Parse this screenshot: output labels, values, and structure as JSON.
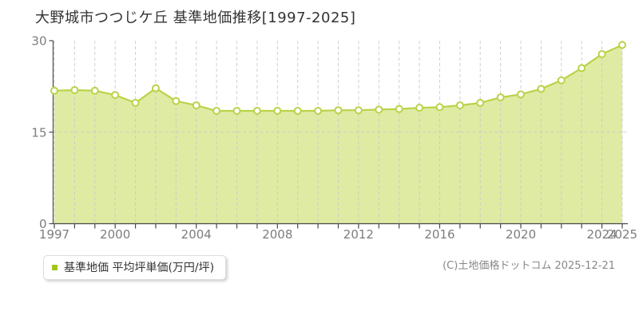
{
  "title": "大野城市つつじケ丘 基準地価推移[1997-2025]",
  "legend": {
    "marker": "square",
    "marker_color": "#a2c51d",
    "label": "基準地価 平均坪単価(万円/坪)"
  },
  "copyright": "(C)土地価格ドットコム 2025-12-21",
  "chart_data": {
    "type": "area",
    "title": "大野城市つつじケ丘 基準地価推移[1997-2025]",
    "xlabel": "",
    "ylabel": "平均坪単価(万円/坪)",
    "x": [
      1997,
      1998,
      1999,
      2000,
      2001,
      2002,
      2003,
      2004,
      2005,
      2006,
      2007,
      2008,
      2009,
      2010,
      2011,
      2012,
      2013,
      2014,
      2015,
      2016,
      2017,
      2018,
      2019,
      2020,
      2021,
      2022,
      2023,
      2024,
      2025
    ],
    "series": [
      {
        "name": "基準地価 平均坪単価(万円/坪)",
        "values": [
          21.8,
          21.9,
          21.8,
          21.1,
          19.8,
          22.2,
          20.1,
          19.4,
          18.5,
          18.5,
          18.5,
          18.5,
          18.5,
          18.5,
          18.6,
          18.6,
          18.7,
          18.8,
          19.0,
          19.1,
          19.4,
          19.8,
          20.7,
          21.2,
          22.1,
          23.5,
          25.5,
          27.8,
          29.3
        ]
      }
    ],
    "ylim": [
      0,
      30
    ],
    "yticks": [
      0,
      15,
      30
    ],
    "xticks": [
      1997,
      2000,
      2004,
      2008,
      2012,
      2016,
      2020,
      2024,
      2025
    ],
    "grid": "dashed vertical line per year, dashed horizontal line at 15",
    "legend_position": "bottom-left",
    "colors": {
      "line": "#b9d348",
      "fill": "#dfeba3",
      "marker_fill": "#ffffff",
      "grid": "#c8c8c8",
      "axis": "#4a4a4a",
      "tick_text": "#7d7d7d",
      "title_text": "#333333"
    }
  }
}
